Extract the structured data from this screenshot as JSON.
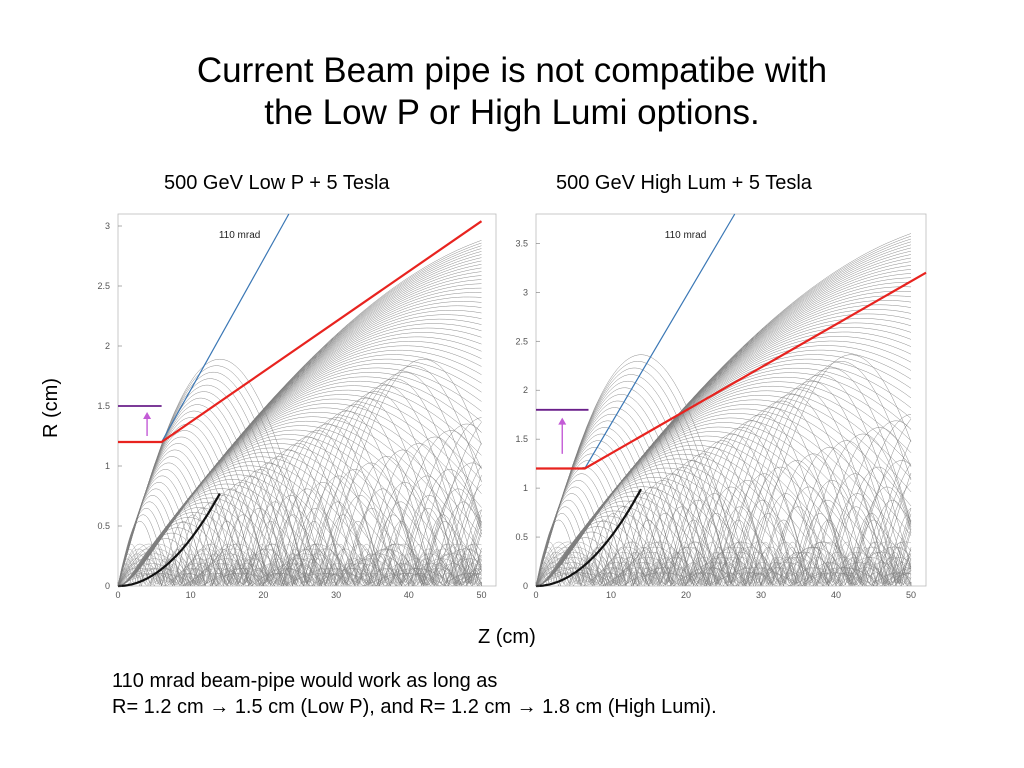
{
  "title_line1": "Current Beam pipe is not compatibe with",
  "title_line2": "the Low P or High Lumi options.",
  "ylabel": "R (cm)",
  "xlabel": "Z (cm)",
  "note_line1": "110 mrad beam-pipe would work as long as",
  "note_line2": "R= 1.2 cm → 1.5 cm (Low P), and R= 1.2 cm → 1.8 cm (High Lumi).",
  "colors": {
    "envelope": "#e8231f",
    "mrad_line": "#3a77b5",
    "arrow": "#c35bd6",
    "old_pipe": "#6a1f8a",
    "helix": "#555555"
  },
  "chart_data": [
    {
      "type": "line",
      "subtitle": "500 GeV Low P + 5 Tesla",
      "xlim": [
        0,
        52
      ],
      "ylim": [
        0,
        3.1
      ],
      "xticks": [
        0,
        10,
        20,
        30,
        40,
        50
      ],
      "yticks": [
        0,
        0.5,
        1,
        1.5,
        2,
        2.5,
        3
      ],
      "annotation": "110 mrad",
      "mrad_line": {
        "x": [
          0,
          23.5
        ],
        "y": [
          0,
          3.1
        ]
      },
      "envelope": {
        "x": [
          0,
          6,
          50
        ],
        "y": [
          1.2,
          1.2,
          3.04
        ]
      },
      "old_pipe": {
        "x": [
          0,
          6
        ],
        "y": [
          1.5,
          1.5
        ]
      },
      "arrow": {
        "x": 4,
        "y_from": 1.25,
        "y_to": 1.45
      },
      "helix_band_max": 3.0,
      "helix_dense_max": 0.35
    },
    {
      "type": "line",
      "subtitle": "500 GeV High Lum + 5 Tesla",
      "xlim": [
        0,
        52
      ],
      "ylim": [
        0,
        3.8
      ],
      "xticks": [
        0,
        10,
        20,
        30,
        40,
        50
      ],
      "yticks": [
        0,
        0.5,
        1,
        1.5,
        2,
        2.5,
        3,
        3.5
      ],
      "annotation": "110 mrad",
      "mrad_line": {
        "x": [
          0,
          26.5
        ],
        "y": [
          0,
          3.8
        ]
      },
      "envelope": {
        "x": [
          0,
          6.5,
          52
        ],
        "y": [
          1.2,
          1.2,
          3.2
        ]
      },
      "old_pipe": {
        "x": [
          0,
          7
        ],
        "y": [
          1.8,
          1.8
        ]
      },
      "arrow": {
        "x": 3.5,
        "y_from": 1.35,
        "y_to": 1.72
      },
      "helix_band_max": 3.75,
      "helix_dense_max": 0.45
    }
  ]
}
